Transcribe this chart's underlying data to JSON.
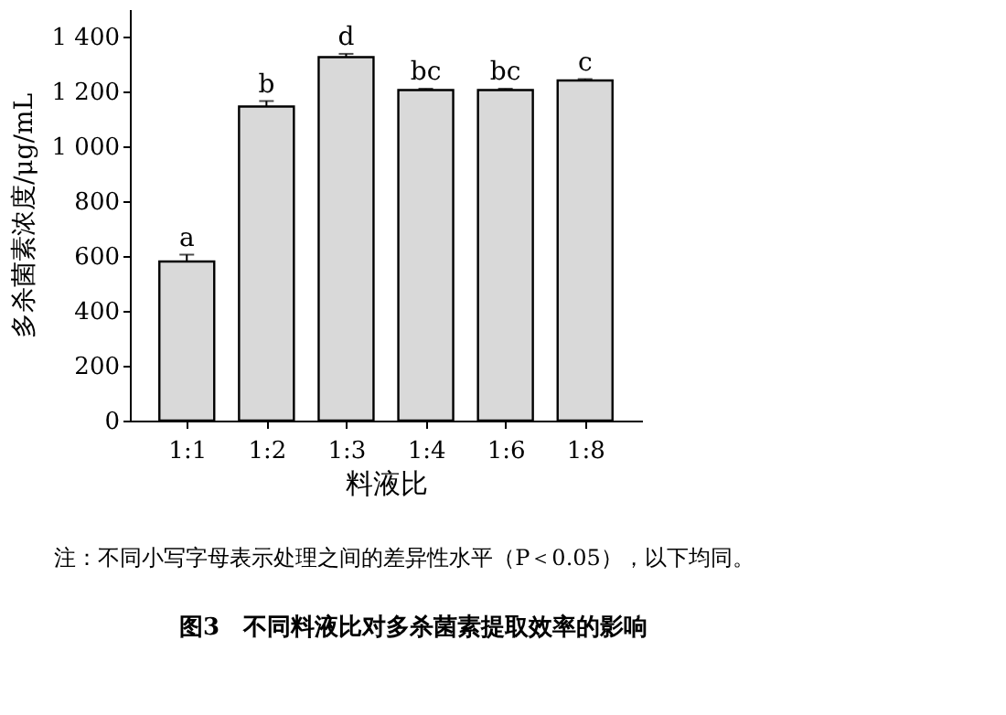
{
  "chart_data": {
    "type": "bar",
    "xlabel": "料液比",
    "ylabel": "多杀菌素浓度/μg/mL",
    "categories": [
      "1:1",
      "1:2",
      "1:3",
      "1:4",
      "1:6",
      "1:8"
    ],
    "values": [
      580,
      1145,
      1325,
      1205,
      1205,
      1240
    ],
    "errors": [
      25,
      20,
      12,
      5,
      5,
      5
    ],
    "color": "#d9d9d9",
    "ylim": [
      0,
      1500
    ],
    "yticks": [
      0,
      200,
      400,
      600,
      800,
      {
        "value": 1000,
        "label": "1 000"
      },
      {
        "value": 1200,
        "label": "1 200"
      },
      {
        "value": 1400,
        "label": "1 400"
      }
    ],
    "grid": false,
    "annotations": [
      {
        "text": "a",
        "x": "1:1",
        "y": 605
      },
      {
        "text": "b",
        "x": "1:2",
        "y": 1165
      },
      {
        "text": "d",
        "x": "1:3",
        "y": 1337
      },
      {
        "text": "bc",
        "x": "1:4",
        "y": 1210
      },
      {
        "text": "bc",
        "x": "1:6",
        "y": 1210
      },
      {
        "text": "c",
        "x": "1:8",
        "y": 1245
      },
      "注：不同小写字母表示处理之间的差异性水平（P＜0.05），以下均同。",
      "图3　不同料液比对多杀菌素提取效率的影响"
    ]
  }
}
